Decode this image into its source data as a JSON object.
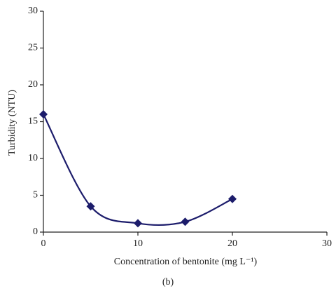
{
  "chart_data": {
    "type": "line",
    "x_label": "Concentration of bentonite (mg L⁻¹)",
    "y_label": "Turbidity (NTU)",
    "caption": "(b)",
    "x": [
      0,
      5,
      10,
      15,
      20
    ],
    "series": [
      {
        "color": "#1c1c6b",
        "values": [
          16,
          3.5,
          1.2,
          1.4,
          4.5
        ]
      }
    ],
    "xlim": [
      0,
      30
    ],
    "xticks": [
      0,
      10,
      20,
      30
    ],
    "ylim": [
      0,
      30
    ],
    "yticks": [
      0,
      5,
      10,
      15,
      20,
      25,
      30
    ],
    "smooth": true,
    "marker": "diamond"
  }
}
